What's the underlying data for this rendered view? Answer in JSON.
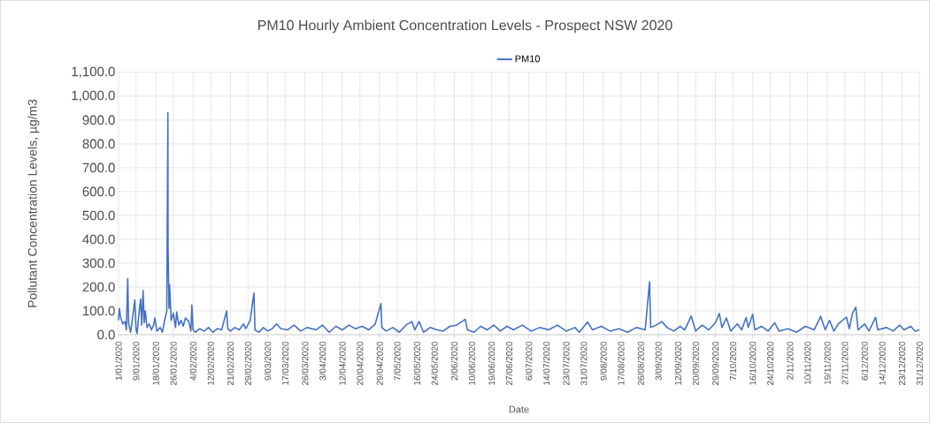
{
  "chart_data": {
    "type": "line",
    "title": "PM10 Hourly Ambient Concentration Levels - Prospect NSW 2020",
    "xlabel": "Date",
    "ylabel": "Pollutant Concentration Levels, µg/m3",
    "legend": "top",
    "grid": true,
    "xlim": [
      "2020-01-01",
      "2020-12-31"
    ],
    "ylim": [
      0,
      1100
    ],
    "yticks": [
      {
        "value": 0,
        "label": "0.0"
      },
      {
        "value": 100,
        "label": "100.0"
      },
      {
        "value": 200,
        "label": "200.0"
      },
      {
        "value": 300,
        "label": "300.0"
      },
      {
        "value": 400,
        "label": "400.0"
      },
      {
        "value": 500,
        "label": "500.0"
      },
      {
        "value": 600,
        "label": "600.0"
      },
      {
        "value": 700,
        "label": "700.0"
      },
      {
        "value": 800,
        "label": "800.0"
      },
      {
        "value": 900,
        "label": "900.0"
      },
      {
        "value": 1000,
        "label": "1,000.0"
      },
      {
        "value": 1100,
        "label": "1,100.0"
      }
    ],
    "xticks": [
      {
        "value": "2020-01-01",
        "label": "1/01/2020"
      },
      {
        "value": "2020-01-09",
        "label": "9/01/2020"
      },
      {
        "value": "2020-01-18",
        "label": "18/01/2020"
      },
      {
        "value": "2020-01-26",
        "label": "26/01/2020"
      },
      {
        "value": "2020-02-04",
        "label": "4/02/2020"
      },
      {
        "value": "2020-02-12",
        "label": "12/02/2020"
      },
      {
        "value": "2020-02-21",
        "label": "21/02/2020"
      },
      {
        "value": "2020-02-29",
        "label": "29/02/2020"
      },
      {
        "value": "2020-03-09",
        "label": "9/03/2020"
      },
      {
        "value": "2020-03-17",
        "label": "17/03/2020"
      },
      {
        "value": "2020-03-26",
        "label": "26/03/2020"
      },
      {
        "value": "2020-04-03",
        "label": "3/04/2020"
      },
      {
        "value": "2020-04-12",
        "label": "12/04/2020"
      },
      {
        "value": "2020-04-20",
        "label": "20/04/2020"
      },
      {
        "value": "2020-04-29",
        "label": "29/04/2020"
      },
      {
        "value": "2020-05-07",
        "label": "7/05/2020"
      },
      {
        "value": "2020-05-16",
        "label": "16/05/2020"
      },
      {
        "value": "2020-05-24",
        "label": "24/05/2020"
      },
      {
        "value": "2020-06-02",
        "label": "2/06/2020"
      },
      {
        "value": "2020-06-10",
        "label": "10/06/2020"
      },
      {
        "value": "2020-06-19",
        "label": "19/06/2020"
      },
      {
        "value": "2020-06-27",
        "label": "27/06/2020"
      },
      {
        "value": "2020-07-06",
        "label": "6/07/2020"
      },
      {
        "value": "2020-07-14",
        "label": "14/07/2020"
      },
      {
        "value": "2020-07-23",
        "label": "23/07/2020"
      },
      {
        "value": "2020-07-31",
        "label": "31/07/2020"
      },
      {
        "value": "2020-08-09",
        "label": "9/08/2020"
      },
      {
        "value": "2020-08-17",
        "label": "17/08/2020"
      },
      {
        "value": "2020-08-26",
        "label": "26/08/2020"
      },
      {
        "value": "2020-09-03",
        "label": "3/09/2020"
      },
      {
        "value": "2020-09-12",
        "label": "12/09/2020"
      },
      {
        "value": "2020-09-20",
        "label": "20/09/2020"
      },
      {
        "value": "2020-09-29",
        "label": "29/09/2020"
      },
      {
        "value": "2020-10-07",
        "label": "7/10/2020"
      },
      {
        "value": "2020-10-16",
        "label": "16/10/2020"
      },
      {
        "value": "2020-10-24",
        "label": "24/10/2020"
      },
      {
        "value": "2020-11-02",
        "label": "2/11/2020"
      },
      {
        "value": "2020-11-10",
        "label": "10/11/2020"
      },
      {
        "value": "2020-11-19",
        "label": "19/11/2020"
      },
      {
        "value": "2020-11-27",
        "label": "27/11/2020"
      },
      {
        "value": "2020-12-06",
        "label": "6/12/2020"
      },
      {
        "value": "2020-12-14",
        "label": "14/12/2020"
      },
      {
        "value": "2020-12-23",
        "label": "23/12/2020"
      },
      {
        "value": "2020-12-31",
        "label": "31/12/2020"
      }
    ],
    "x": [
      "2020-01-01T00:00",
      "2020-01-01T10:00",
      "2020-01-02",
      "2020-01-03",
      "2020-01-04",
      "2020-01-04T14:00",
      "2020-01-05T05:00",
      "2020-01-05T14:00",
      "2020-01-06T12:00",
      "2020-01-07",
      "2020-01-08T10:00",
      "2020-01-09",
      "2020-01-09T12:00",
      "2020-01-10",
      "2020-01-11T02:00",
      "2020-01-11T14:00",
      "2020-01-12T05:00",
      "2020-01-12T17:00",
      "2020-01-13T05:00",
      "2020-01-14",
      "2020-01-15",
      "2020-01-16",
      "2020-01-17",
      "2020-01-17T14:00",
      "2020-01-18T12:00",
      "2020-01-20",
      "2020-01-21",
      "2020-01-22",
      "2020-01-23",
      "2020-01-23T12:00",
      "2020-01-23T14:00",
      "2020-01-24",
      "2020-01-24T07:00",
      "2020-01-25",
      "2020-01-26",
      "2020-01-27",
      "2020-01-27T12:00",
      "2020-01-28T12:00",
      "2020-01-29T12:00",
      "2020-01-30T12:00",
      "2020-01-31T12:00",
      "2020-02-02",
      "2020-02-03",
      "2020-02-03T10:00",
      "2020-02-04",
      "2020-02-05",
      "2020-02-07",
      "2020-02-09",
      "2020-02-11",
      "2020-02-13",
      "2020-02-15",
      "2020-02-17",
      "2020-02-19T07:00",
      "2020-02-19T19:00",
      "2020-02-21",
      "2020-02-23",
      "2020-02-25",
      "2020-02-27",
      "2020-02-28",
      "2020-03-01",
      "2020-03-02T17:00",
      "2020-03-03T05:00",
      "2020-03-05",
      "2020-03-07",
      "2020-03-09",
      "2020-03-11",
      "2020-03-13",
      "2020-03-15",
      "2020-03-18",
      "2020-03-21",
      "2020-03-24",
      "2020-03-27",
      "2020-03-31",
      "2020-04-03",
      "2020-04-06",
      "2020-04-09",
      "2020-04-12",
      "2020-04-15",
      "2020-04-18",
      "2020-04-21",
      "2020-04-24",
      "2020-04-27",
      "2020-04-29T14:00",
      "2020-04-30",
      "2020-05-02",
      "2020-05-05",
      "2020-05-08",
      "2020-05-11",
      "2020-05-13T17:00",
      "2020-05-15",
      "2020-05-17",
      "2020-05-19",
      "2020-05-22",
      "2020-05-25",
      "2020-05-28",
      "2020-05-31",
      "2020-06-03",
      "2020-06-07",
      "2020-06-08",
      "2020-06-11",
      "2020-06-14",
      "2020-06-17",
      "2020-06-20",
      "2020-06-23",
      "2020-06-26",
      "2020-06-29",
      "2020-07-03",
      "2020-07-07",
      "2020-07-11",
      "2020-07-15",
      "2020-07-19",
      "2020-07-23",
      "2020-07-27",
      "2020-07-29",
      "2020-08-01T17:00",
      "2020-08-04",
      "2020-08-08",
      "2020-08-12",
      "2020-08-16",
      "2020-08-20",
      "2020-08-24",
      "2020-08-28",
      "2020-08-30",
      "2020-08-30T12:00",
      "2020-09-02",
      "2020-09-04T14:00",
      "2020-09-07",
      "2020-09-10",
      "2020-09-13",
      "2020-09-15",
      "2020-09-18",
      "2020-09-20",
      "2020-09-23",
      "2020-09-26",
      "2020-09-29",
      "2020-09-30T19:00",
      "2020-10-02",
      "2020-10-04",
      "2020-10-06",
      "2020-10-09",
      "2020-10-11",
      "2020-10-13",
      "2020-10-14",
      "2020-10-16",
      "2020-10-17",
      "2020-10-20",
      "2020-10-23",
      "2020-10-26",
      "2020-10-28",
      "2020-11-01",
      "2020-11-05",
      "2020-11-09",
      "2020-11-13",
      "2020-11-16",
      "2020-11-18",
      "2020-11-20",
      "2020-11-22",
      "2020-11-24",
      "2020-11-27T17:00",
      "2020-11-29",
      "2020-11-30T12:00",
      "2020-12-02",
      "2020-12-03",
      "2020-12-06",
      "2020-12-08",
      "2020-12-11",
      "2020-12-12",
      "2020-12-16",
      "2020-12-19",
      "2020-12-22",
      "2020-12-24",
      "2020-12-27",
      "2020-12-29",
      "2020-12-31"
    ],
    "series": [
      {
        "name": "PM10",
        "color": "#4472c4",
        "values": [
          60,
          110,
          70,
          45,
          55,
          20,
          235,
          50,
          10,
          40,
          145,
          20,
          5,
          60,
          150,
          40,
          185,
          50,
          100,
          30,
          45,
          20,
          40,
          70,
          15,
          30,
          10,
          60,
          100,
          930,
          360,
          110,
          210,
          60,
          90,
          30,
          95,
          40,
          60,
          35,
          70,
          55,
          15,
          125,
          20,
          10,
          25,
          15,
          30,
          10,
          25,
          20,
          100,
          25,
          15,
          30,
          20,
          45,
          25,
          60,
          175,
          20,
          10,
          30,
          15,
          25,
          45,
          25,
          20,
          40,
          15,
          30,
          20,
          40,
          10,
          35,
          20,
          40,
          25,
          35,
          20,
          45,
          130,
          30,
          15,
          30,
          10,
          40,
          55,
          20,
          55,
          10,
          30,
          20,
          15,
          35,
          40,
          64,
          20,
          10,
          35,
          20,
          40,
          15,
          35,
          20,
          40,
          15,
          30,
          20,
          40,
          15,
          30,
          10,
          53,
          20,
          35,
          15,
          25,
          10,
          30,
          20,
          222,
          30,
          40,
          55,
          30,
          15,
          35,
          20,
          78,
          15,
          40,
          20,
          50,
          89,
          30,
          70,
          15,
          45,
          20,
          72,
          30,
          86,
          20,
          35,
          15,
          50,
          15,
          25,
          10,
          35,
          20,
          77,
          20,
          60,
          15,
          45,
          74,
          25,
          90,
          115,
          20,
          45,
          15,
          73,
          20,
          30,
          15,
          40,
          20,
          35,
          15,
          20
        ]
      }
    ]
  }
}
